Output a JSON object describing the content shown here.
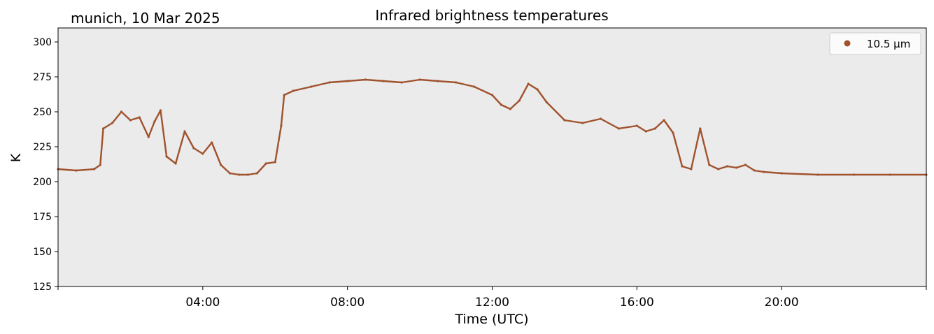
{
  "chart_data": {
    "type": "scatter",
    "title": "Infrared brightness temperatures",
    "subtitle": "munich, 10 Mar 2025",
    "xlabel": "Time (UTC)",
    "ylabel": "K",
    "xlim": [
      "00:00",
      "24:00"
    ],
    "ylim": [
      125,
      310
    ],
    "x_ticks": [
      "04:00",
      "08:00",
      "12:00",
      "16:00",
      "20:00"
    ],
    "y_ticks": [
      125,
      150,
      175,
      200,
      225,
      250,
      275,
      300
    ],
    "grid": false,
    "legend": {
      "placement": "top-right",
      "entries": [
        "10.5 µm"
      ]
    },
    "colors": {
      "series": "#a0522d",
      "plot_background": "#ebebeb"
    },
    "series": [
      {
        "name": "10.5 µm",
        "x": [
          "00:00",
          "00:30",
          "01:00",
          "01:10",
          "01:15",
          "01:30",
          "01:45",
          "02:00",
          "02:15",
          "02:30",
          "02:40",
          "02:50",
          "03:00",
          "03:15",
          "03:30",
          "03:45",
          "04:00",
          "04:15",
          "04:30",
          "04:45",
          "05:00",
          "05:15",
          "05:30",
          "05:45",
          "06:00",
          "06:10",
          "06:15",
          "06:30",
          "07:00",
          "07:30",
          "08:00",
          "08:30",
          "09:00",
          "09:30",
          "10:00",
          "10:30",
          "11:00",
          "11:30",
          "12:00",
          "12:15",
          "12:30",
          "12:45",
          "13:00",
          "13:15",
          "13:30",
          "14:00",
          "14:30",
          "15:00",
          "15:30",
          "16:00",
          "16:15",
          "16:30",
          "16:45",
          "17:00",
          "17:15",
          "17:30",
          "17:45",
          "18:00",
          "18:15",
          "18:30",
          "18:45",
          "19:00",
          "19:15",
          "19:30",
          "20:00",
          "21:00",
          "22:00",
          "23:00",
          "24:00"
        ],
        "y": [
          209,
          208,
          209,
          212,
          238,
          242,
          250,
          244,
          246,
          232,
          243,
          251,
          218,
          213,
          236,
          224,
          220,
          228,
          212,
          206,
          205,
          205,
          206,
          213,
          214,
          240,
          262,
          265,
          268,
          271,
          272,
          273,
          272,
          271,
          273,
          272,
          271,
          268,
          262,
          255,
          252,
          258,
          270,
          266,
          257,
          244,
          242,
          245,
          238,
          240,
          236,
          238,
          244,
          235,
          211,
          209,
          238,
          212,
          209,
          211,
          210,
          212,
          208,
          207,
          206,
          205,
          205,
          205,
          205
        ]
      }
    ]
  }
}
